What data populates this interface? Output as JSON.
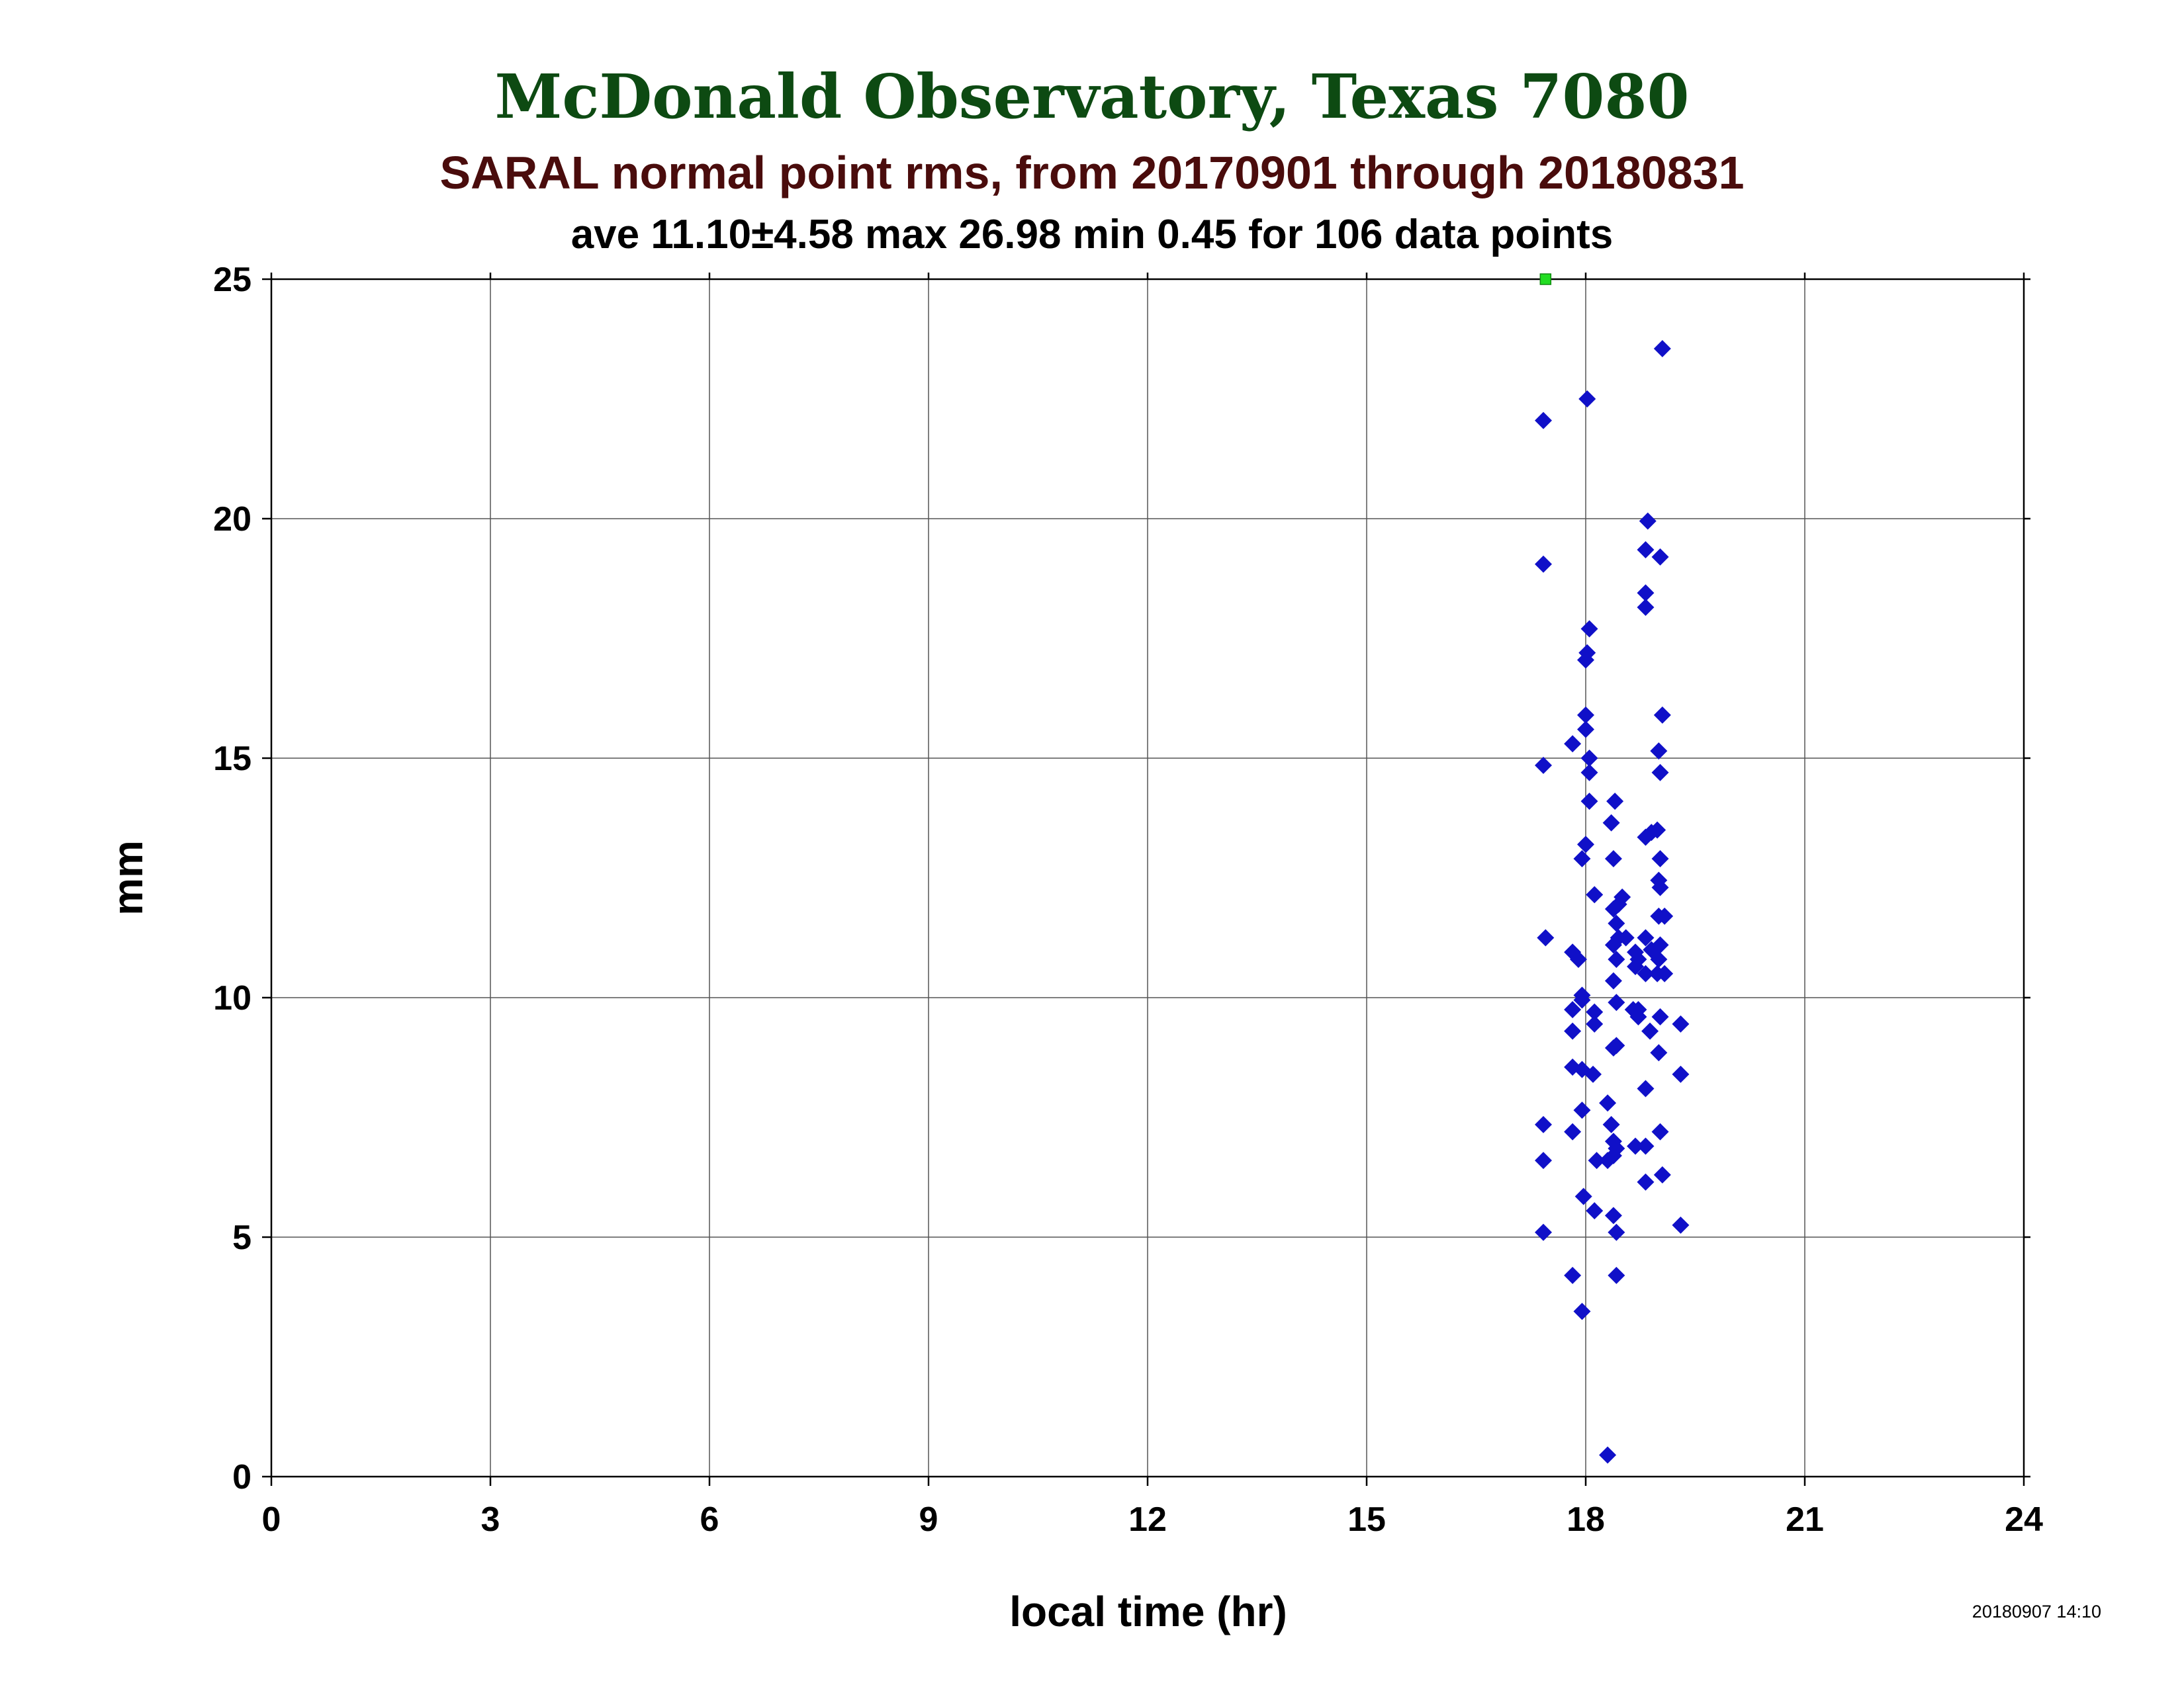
{
  "chart_data": {
    "type": "scatter",
    "title": "McDonald Observatory, Texas 7080",
    "subtitle": "SARAL normal point rms, from 20170901 through 20180831",
    "stats_line": "ave 11.10±4.58 max 26.98 min 0.45 for 106 data points",
    "xlabel": "local time (hr)",
    "ylabel": "mm",
    "xlim": [
      0,
      24
    ],
    "ylim": [
      0,
      25
    ],
    "x_ticks": [
      "0",
      "3",
      "6",
      "9",
      "12",
      "15",
      "18",
      "21",
      "24"
    ],
    "y_ticks": [
      "0",
      "5",
      "10",
      "15",
      "20",
      "25"
    ],
    "grid": true,
    "timestamp": "20180907 14:10",
    "colors": {
      "title": "#0d4a12",
      "subtitle": "#4a0c0c",
      "stats": "#000000",
      "points": "#1010c8",
      "overflow_marker": "#22dd22"
    },
    "overflow_points": [
      {
        "x": 17.45,
        "y": 25
      }
    ],
    "series": [
      {
        "marker": "diamond",
        "points": [
          [
            17.42,
            22.05
          ],
          [
            17.42,
            19.05
          ],
          [
            17.42,
            14.85
          ],
          [
            17.45,
            11.25
          ],
          [
            17.42,
            7.35
          ],
          [
            17.42,
            6.6
          ],
          [
            17.42,
            5.1
          ],
          [
            18.02,
            22.5
          ],
          [
            18.05,
            17.7
          ],
          [
            18.02,
            17.2
          ],
          [
            18.0,
            17.05
          ],
          [
            18.0,
            15.9
          ],
          [
            18.0,
            15.6
          ],
          [
            18.05,
            15.0
          ],
          [
            18.05,
            14.7
          ],
          [
            17.82,
            15.3
          ],
          [
            18.05,
            14.1
          ],
          [
            18.0,
            13.2
          ],
          [
            17.95,
            12.9
          ],
          [
            18.12,
            12.15
          ],
          [
            17.82,
            10.95
          ],
          [
            17.9,
            10.8
          ],
          [
            17.95,
            10.05
          ],
          [
            17.95,
            9.95
          ],
          [
            17.82,
            9.75
          ],
          [
            18.12,
            9.7
          ],
          [
            18.12,
            9.45
          ],
          [
            17.82,
            9.3
          ],
          [
            17.82,
            8.55
          ],
          [
            17.95,
            8.5
          ],
          [
            18.1,
            8.4
          ],
          [
            17.95,
            7.65
          ],
          [
            17.82,
            7.2
          ],
          [
            18.15,
            6.6
          ],
          [
            17.97,
            5.85
          ],
          [
            18.12,
            5.55
          ],
          [
            17.82,
            4.2
          ],
          [
            17.95,
            3.45
          ],
          [
            18.4,
            14.1
          ],
          [
            18.35,
            13.65
          ],
          [
            18.38,
            12.9
          ],
          [
            18.5,
            12.1
          ],
          [
            18.45,
            11.95
          ],
          [
            18.38,
            11.85
          ],
          [
            18.42,
            11.55
          ],
          [
            18.45,
            11.25
          ],
          [
            18.55,
            11.25
          ],
          [
            18.38,
            11.1
          ],
          [
            18.42,
            10.8
          ],
          [
            18.38,
            10.35
          ],
          [
            18.42,
            9.9
          ],
          [
            18.42,
            9.0
          ],
          [
            18.38,
            8.95
          ],
          [
            18.3,
            7.8
          ],
          [
            18.35,
            7.35
          ],
          [
            18.38,
            7.0
          ],
          [
            18.42,
            6.85
          ],
          [
            18.38,
            6.7
          ],
          [
            18.3,
            6.6
          ],
          [
            18.38,
            5.45
          ],
          [
            18.42,
            5.1
          ],
          [
            18.42,
            4.2
          ],
          [
            18.3,
            0.45
          ],
          [
            18.68,
            10.95
          ],
          [
            18.72,
            10.8
          ],
          [
            18.68,
            10.65
          ],
          [
            18.65,
            9.75
          ],
          [
            18.72,
            9.6
          ],
          [
            18.72,
            9.75
          ],
          [
            18.85,
            19.95
          ],
          [
            18.82,
            19.35
          ],
          [
            18.82,
            18.45
          ],
          [
            18.82,
            18.15
          ],
          [
            18.82,
            13.35
          ],
          [
            18.9,
            13.45
          ],
          [
            18.82,
            11.25
          ],
          [
            18.9,
            11.0
          ],
          [
            18.82,
            10.5
          ],
          [
            18.88,
            9.3
          ],
          [
            18.82,
            8.1
          ],
          [
            18.82,
            6.9
          ],
          [
            18.68,
            6.9
          ],
          [
            18.82,
            6.15
          ],
          [
            19.05,
            23.55
          ],
          [
            19.02,
            19.2
          ],
          [
            19.05,
            15.9
          ],
          [
            19.0,
            15.15
          ],
          [
            19.02,
            14.7
          ],
          [
            18.98,
            13.5
          ],
          [
            19.02,
            12.9
          ],
          [
            19.0,
            12.45
          ],
          [
            19.02,
            12.3
          ],
          [
            19.0,
            11.7
          ],
          [
            19.08,
            11.7
          ],
          [
            19.02,
            11.1
          ],
          [
            19.0,
            10.8
          ],
          [
            18.98,
            10.5
          ],
          [
            19.08,
            10.5
          ],
          [
            19.02,
            9.6
          ],
          [
            19.0,
            8.85
          ],
          [
            19.02,
            7.2
          ],
          [
            19.05,
            6.3
          ],
          [
            19.3,
            9.45
          ],
          [
            19.3,
            8.4
          ],
          [
            19.3,
            5.25
          ]
        ]
      }
    ]
  }
}
